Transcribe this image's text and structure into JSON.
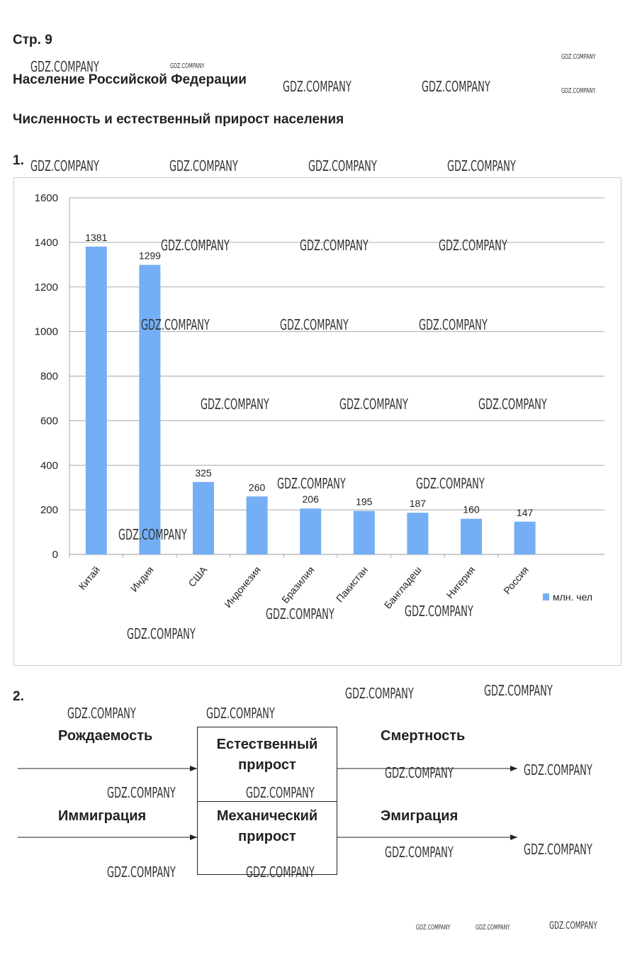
{
  "page_label": "Стр. 9",
  "heading": "Население Российской Федерации",
  "subheading": "Численность и естественный прирост населения",
  "task1": "1.",
  "task2": "2.",
  "watermark": "GDZ.COMPANY",
  "chart_data": {
    "type": "bar",
    "categories": [
      "Китай",
      "Индия",
      "США",
      "Индонезия",
      "Бразилия",
      "Пакистан",
      "Бангладеш",
      "Нигерия",
      "Россия"
    ],
    "values": [
      1381,
      1299,
      325,
      260,
      206,
      195,
      187,
      160,
      147
    ],
    "series_name": "млн. чел",
    "ylim": [
      0,
      1600
    ],
    "yticks": [
      "0",
      "200",
      "400",
      "600",
      "800",
      "1000",
      "1200",
      "1400",
      "1600"
    ],
    "grid": true,
    "legend": "right",
    "color": "#74aef5"
  },
  "diagram": {
    "left_top": "Рождаемость",
    "left_bottom": "Иммиграция",
    "box_top": "Естественный прирост",
    "box_bottom": "Механический прирост",
    "right_top": "Смертность",
    "right_bottom": "Эмиграция"
  }
}
